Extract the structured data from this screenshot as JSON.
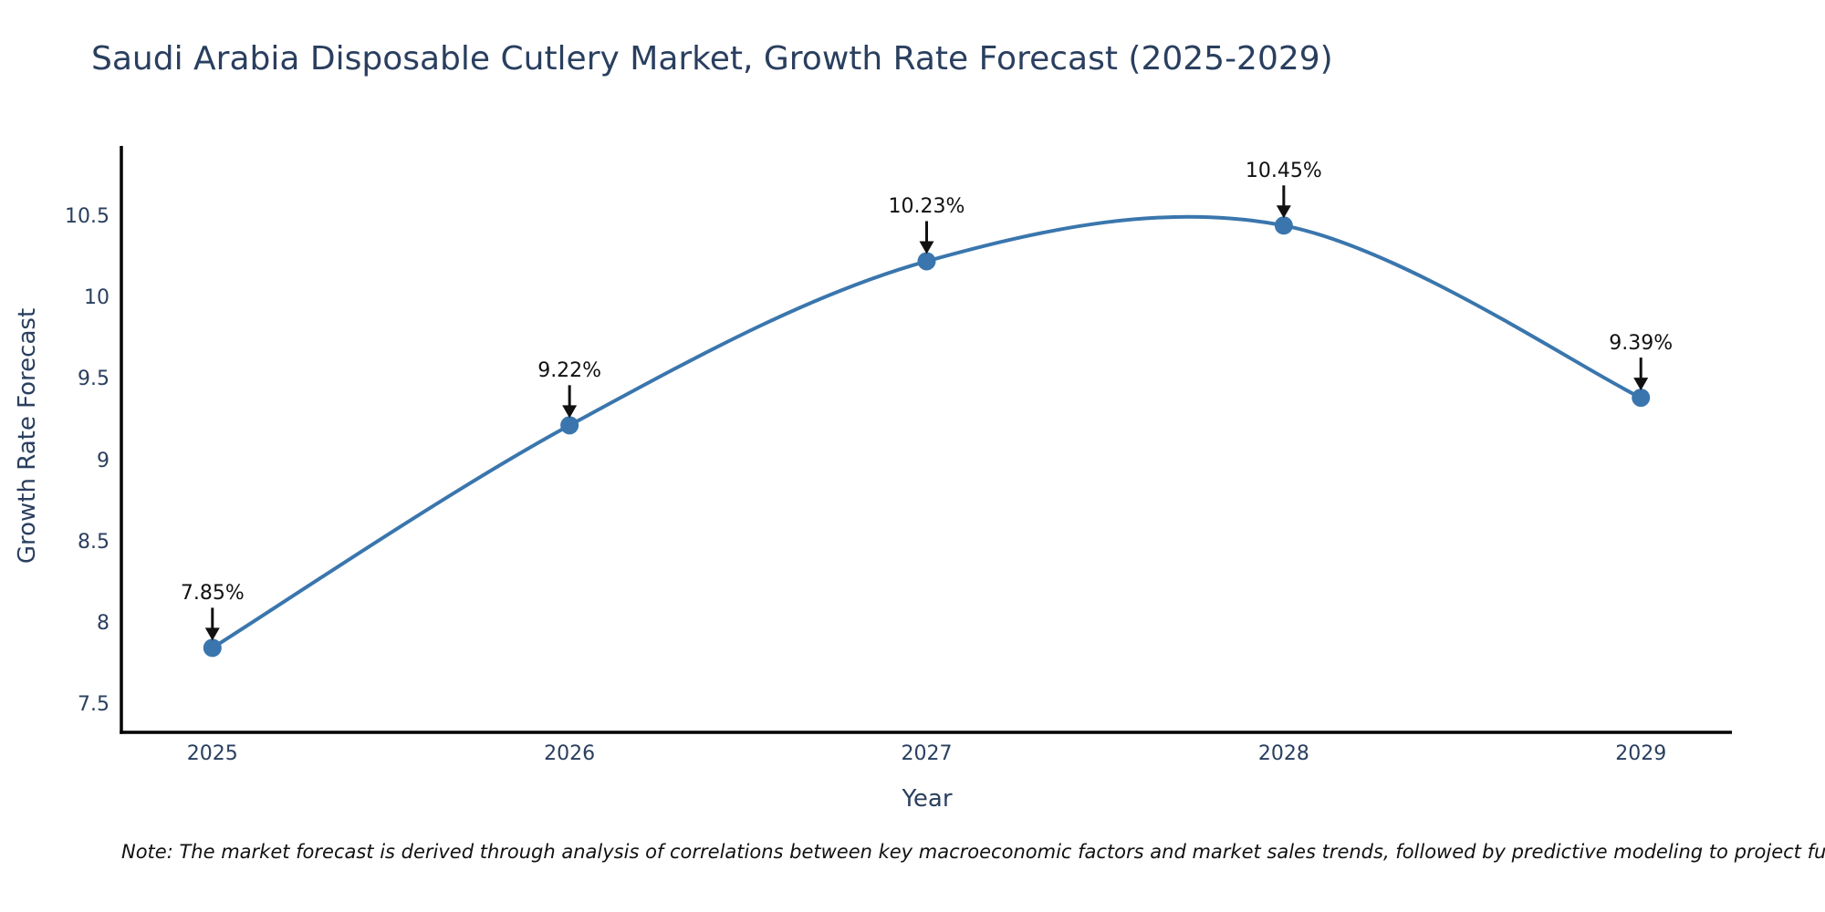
{
  "title": "Saudi Arabia Disposable Cutlery Market, Growth Rate Forecast (2025-2029)",
  "footnote": "Note: The market forecast is derived through analysis of correlations between key macroeconomic factors and market sales trends, followed by predictive modeling to project future sales performance.",
  "colors": {
    "line": "#3a76ad",
    "marker": "#3a76ad",
    "axis_text": "#2a3f5f",
    "annotation_text": "#111111",
    "spine": "#000000",
    "background": "#ffffff"
  },
  "chart_data": {
    "type": "line",
    "line_shape": "spline",
    "title": "Saudi Arabia Disposable Cutlery Market, Growth Rate Forecast (2025-2029)",
    "xlabel": "Year",
    "ylabel": "Growth Rate Forecast",
    "x": [
      2025,
      2026,
      2027,
      2028,
      2029
    ],
    "values": [
      7.85,
      9.22,
      10.23,
      10.45,
      9.39
    ],
    "point_labels": [
      "7.85%",
      "9.22%",
      "10.23%",
      "10.45%",
      "9.39%"
    ],
    "xtick_labels": [
      "2025",
      "2026",
      "2027",
      "2028",
      "2029"
    ],
    "ytick_values": [
      7.5,
      8,
      8.5,
      9,
      9.5,
      10,
      10.5
    ],
    "ytick_labels": [
      "7.5",
      "8",
      "8.5",
      "9",
      "9.5",
      "10",
      "10.5"
    ],
    "xlim": [
      2024.745,
      2029.255
    ],
    "ylim": [
      7.33,
      10.94
    ],
    "grid": false,
    "legend": "none",
    "marker": "circle",
    "annotation_arrows": "down"
  }
}
